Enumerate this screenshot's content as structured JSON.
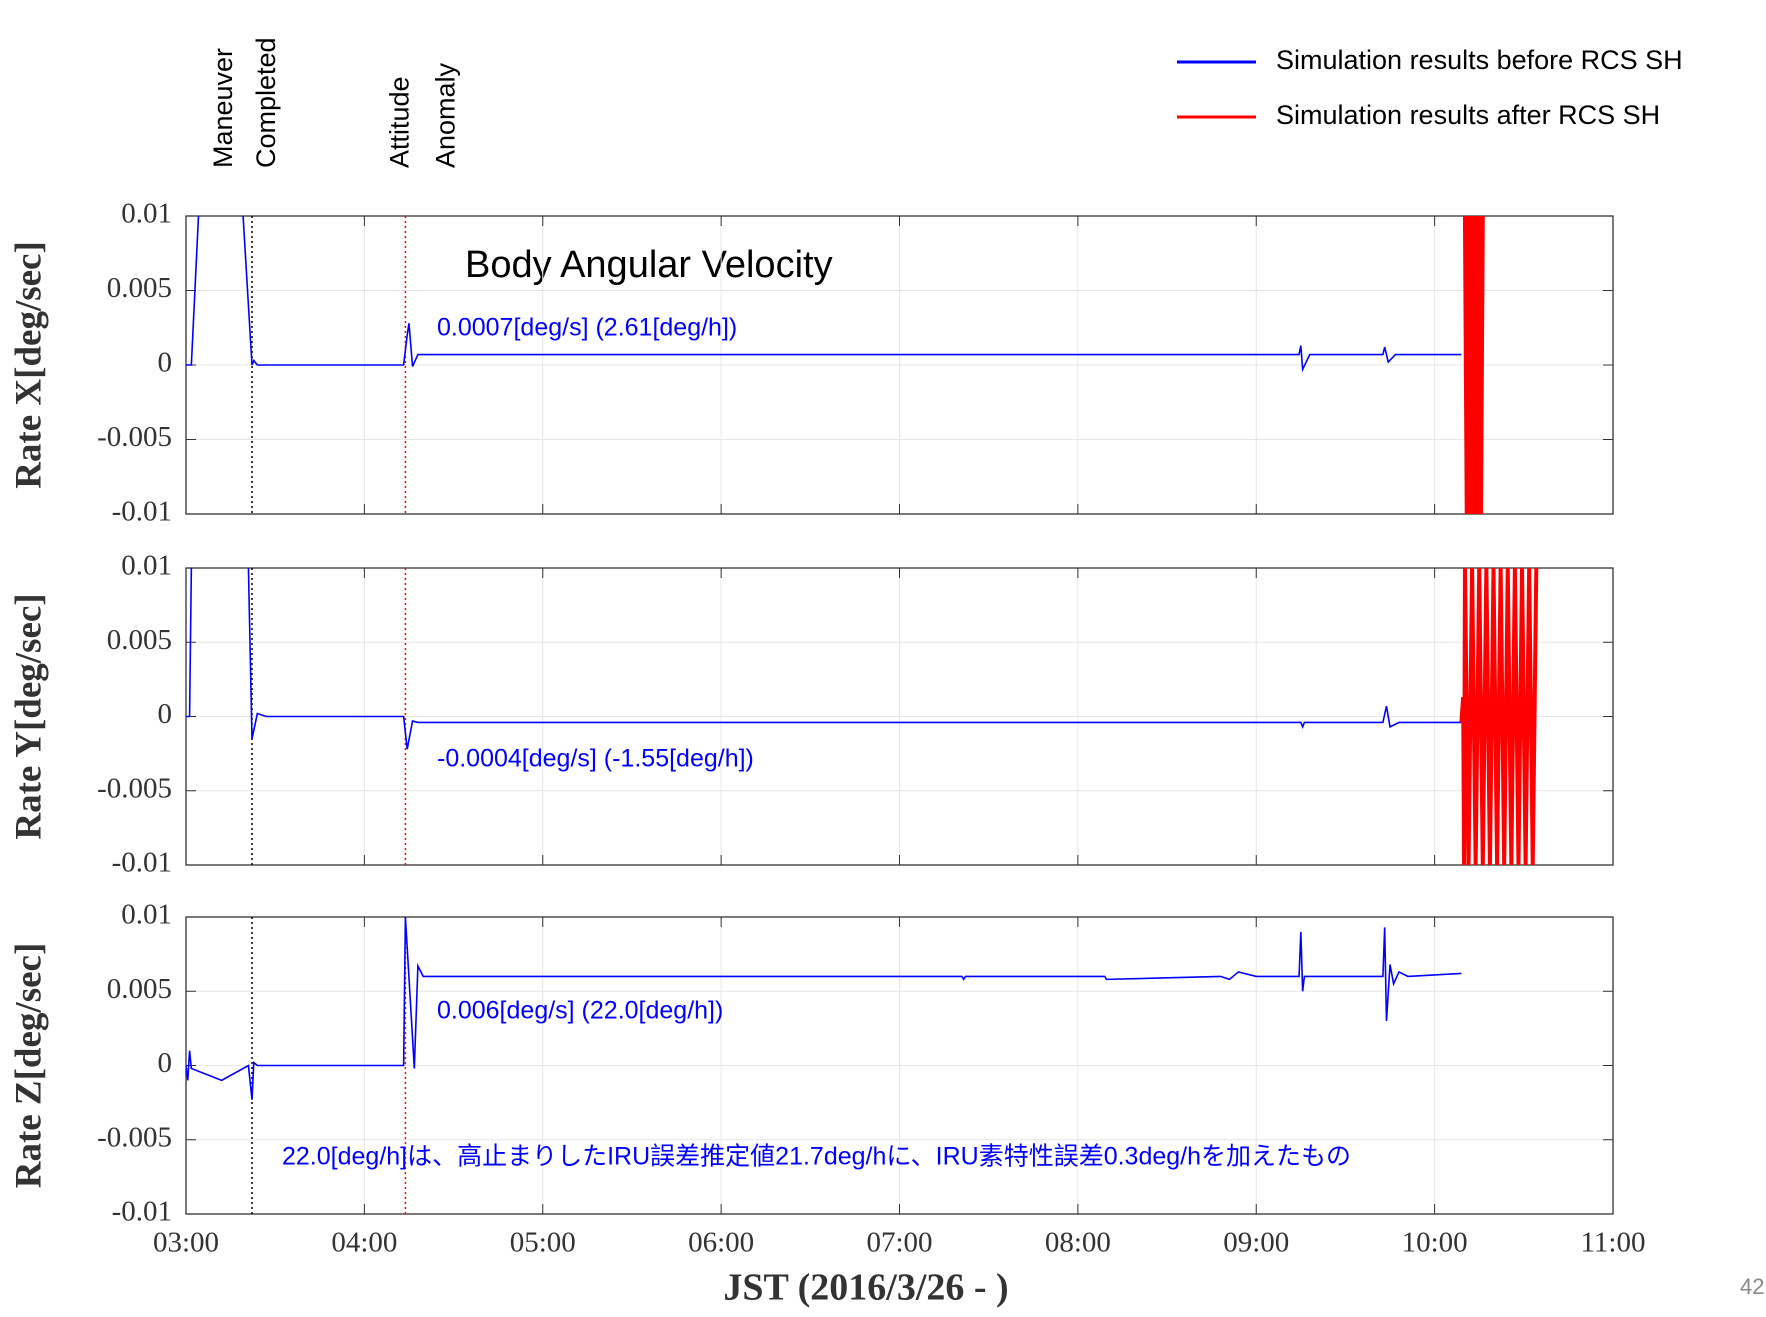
{
  "chart_data": [
    {
      "type": "line",
      "ylabel": "Rate X[deg/sec]",
      "xlim": [
        3,
        11
      ],
      "xticks": [
        3,
        4,
        5,
        6,
        7,
        8,
        9,
        10,
        11
      ],
      "ylim": [
        -0.01,
        0.01
      ],
      "yticks": [
        0.01,
        0.005,
        0,
        -0.005,
        -0.01
      ],
      "grid": true,
      "annotations": [
        "0.0007[deg/s]  (2.61[deg/h])"
      ],
      "series": [
        {
          "name": "Simulation results before  RCS SH",
          "color": "#0000ff",
          "x": [
            3.0,
            3.03,
            3.07,
            3.2,
            3.32,
            3.37,
            3.38,
            3.4,
            4.22,
            4.24,
            4.25,
            4.27,
            4.3,
            5.5,
            7.0,
            9.24,
            9.25,
            9.26,
            9.3,
            9.71,
            9.72,
            9.74,
            9.78,
            10.15
          ],
          "values": [
            0,
            0,
            0.01,
            null,
            0.01,
            0,
            0.0003,
            0,
            0,
            0.002,
            0.0028,
            -0.0001,
            0.0007,
            0.0007,
            0.0007,
            0.0007,
            0.0013,
            -0.0003,
            0.0007,
            0.0007,
            0.0012,
            0.0002,
            0.0007,
            0.0007
          ]
        },
        {
          "name": "Simulation results after  RCS SH",
          "color": "#ff0000",
          "x": [
            10.17,
            10.18,
            10.19,
            10.2,
            10.21,
            10.22,
            10.23,
            10.24,
            10.25,
            10.26,
            10.27
          ],
          "values": [
            0.01,
            -0.01,
            0.01,
            -0.01,
            0.01,
            -0.01,
            0.01,
            -0.01,
            0.01,
            -0.01,
            0.01
          ]
        }
      ]
    },
    {
      "type": "line",
      "ylabel": "Rate Y[deg/sec]",
      "xlim": [
        3,
        11
      ],
      "xticks": [
        3,
        4,
        5,
        6,
        7,
        8,
        9,
        10,
        11
      ],
      "ylim": [
        -0.01,
        0.01
      ],
      "yticks": [
        0.01,
        0.005,
        0,
        -0.005,
        -0.01
      ],
      "grid": true,
      "annotations": [
        "-0.0004[deg/s] (-1.55[deg/h])"
      ],
      "series": [
        {
          "color": "#0000ff",
          "x": [
            3.0,
            3.02,
            3.03,
            3.2,
            3.35,
            3.37,
            3.4,
            3.45,
            4.22,
            4.24,
            4.27,
            4.3,
            7.0,
            9.25,
            9.26,
            9.27,
            9.71,
            9.73,
            9.75,
            9.8,
            10.15
          ],
          "values": [
            0,
            0,
            0.01,
            null,
            0.01,
            -0.0015,
            0.0002,
            0,
            0,
            -0.0022,
            -0.0003,
            -0.0004,
            -0.0004,
            -0.0004,
            -0.0007,
            -0.0004,
            -0.0004,
            0.0007,
            -0.0007,
            -0.0004,
            -0.0004
          ]
        },
        {
          "color": "#ff0000",
          "x": [
            10.15,
            10.16,
            10.165,
            10.17,
            10.19,
            10.21,
            10.23,
            10.25,
            10.27,
            10.29,
            10.31,
            10.33,
            10.35,
            10.37,
            10.39,
            10.41,
            10.43,
            10.45,
            10.47,
            10.49,
            10.51,
            10.53,
            10.55,
            10.57
          ],
          "values": [
            -0.0004,
            0.0013,
            -0.01,
            0.01,
            -0.01,
            0.01,
            -0.01,
            0.01,
            -0.01,
            0.01,
            -0.01,
            0.01,
            -0.01,
            0.01,
            -0.01,
            0.01,
            -0.01,
            0.01,
            -0.01,
            0.01,
            -0.01,
            0.01,
            -0.01,
            0.01
          ]
        }
      ]
    },
    {
      "type": "line",
      "ylabel": "Rate Z[deg/sec]",
      "xlim": [
        3,
        11
      ],
      "xticks": [
        {
          "value": 3,
          "label": "03:00"
        },
        {
          "value": 4,
          "label": "04:00"
        },
        {
          "value": 5,
          "label": "05:00"
        },
        {
          "value": 6,
          "label": "06:00"
        },
        {
          "value": 7,
          "label": "07:00"
        },
        {
          "value": 8,
          "label": "08:00"
        },
        {
          "value": 9,
          "label": "09:00"
        },
        {
          "value": 10,
          "label": "10:00"
        },
        {
          "value": 11,
          "label": "11:00"
        }
      ],
      "ylim": [
        -0.01,
        0.01
      ],
      "yticks": [
        0.01,
        0.005,
        0,
        -0.005,
        -0.01
      ],
      "grid": true,
      "annotations": [
        "0.006[deg/s] (22.0[deg/h])",
        "22.0[deg/h]は、高止まりしたIRU誤差推定値21.7deg/hに、IRU素特性誤差0.3deg/hを加えたもの"
      ],
      "series": [
        {
          "color": "#0000ff",
          "x": [
            3.0,
            3.01,
            3.02,
            3.03,
            3.2,
            3.35,
            3.37,
            3.38,
            3.4,
            4.22,
            4.23,
            4.28,
            4.3,
            4.33,
            7.35,
            7.36,
            7.37,
            8.15,
            8.16,
            8.8,
            8.85,
            8.9,
            9.0,
            9.24,
            9.25,
            9.26,
            9.27,
            9.71,
            9.72,
            9.73,
            9.75,
            9.77,
            9.8,
            9.85,
            10.15
          ],
          "values": [
            0,
            -0.001,
            0.001,
            -0.0002,
            -0.001,
            0,
            -0.0023,
            0.0002,
            0,
            0,
            0.01,
            -0.0002,
            0.0067,
            0.006,
            0.006,
            0.0058,
            0.006,
            0.006,
            0.0058,
            0.006,
            0.0058,
            0.0063,
            0.006,
            0.006,
            0.009,
            0.005,
            0.006,
            0.006,
            0.0093,
            0.003,
            0.0068,
            0.0055,
            0.0063,
            0.006,
            0.0062
          ]
        }
      ]
    }
  ],
  "figure": {
    "title": "Body Angular Velocity",
    "xlabel": "JST (2016/3/26 - )",
    "page_number": "42",
    "events": [
      {
        "label": [
          "Maneuver",
          "Completed"
        ],
        "x": 3.37,
        "color": "#000000"
      },
      {
        "label": [
          "Attitude",
          "Anomaly"
        ],
        "x": 4.23,
        "color": "#ff0000"
      }
    ]
  }
}
